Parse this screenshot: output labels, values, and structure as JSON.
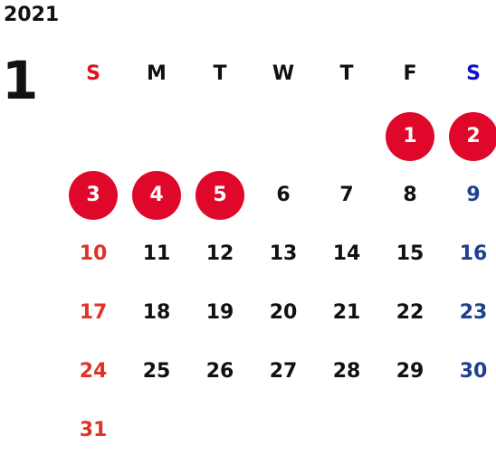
{
  "calendar": {
    "year": "2021",
    "month": "1",
    "weekday_headers": [
      "S",
      "M",
      "T",
      "W",
      "T",
      "F",
      "S"
    ],
    "weeks": [
      [
        "",
        "",
        "",
        "",
        "",
        "1",
        "2"
      ],
      [
        "3",
        "4",
        "5",
        "6",
        "7",
        "8",
        "9"
      ],
      [
        "10",
        "11",
        "12",
        "13",
        "14",
        "15",
        "16"
      ],
      [
        "17",
        "18",
        "19",
        "20",
        "21",
        "22",
        "23"
      ],
      [
        "24",
        "25",
        "26",
        "27",
        "28",
        "29",
        "30"
      ],
      [
        "31",
        "",
        "",
        "",
        "",
        "",
        ""
      ]
    ],
    "holidays": [
      "1",
      "2",
      "3",
      "4",
      "5"
    ]
  },
  "colors": {
    "sunday": "#e03228",
    "saturday": "#1f3f8f",
    "holiday_circle": "#e0082a",
    "weekday": "#111111"
  }
}
